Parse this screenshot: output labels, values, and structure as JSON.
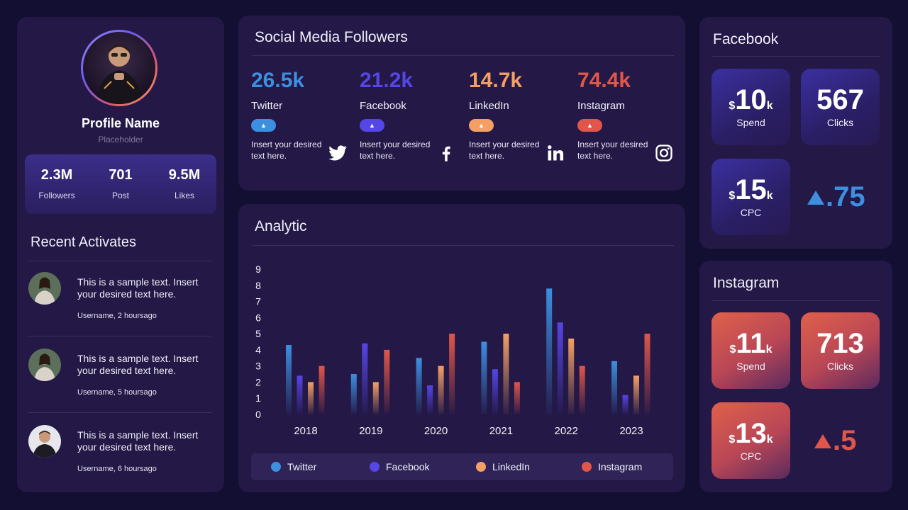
{
  "profile": {
    "name": "Profile Name",
    "subtitle": "Placeholder",
    "stats": [
      {
        "value": "2.3M",
        "label": "Followers"
      },
      {
        "value": "701",
        "label": "Post"
      },
      {
        "value": "9.5M",
        "label": "Likes"
      }
    ]
  },
  "recent": {
    "title": "Recent Activates",
    "items": [
      {
        "text": "This is a sample text. Insert your desired text here.",
        "user": "Username,  2 hoursago"
      },
      {
        "text": "This is a sample text. Insert your desired text here.",
        "user": "Username,  5 hoursago"
      },
      {
        "text": "This is a sample text. Insert your desired text here.",
        "user": "Username,  6 hoursago"
      }
    ]
  },
  "social": {
    "title": "Social Media Followers",
    "networks": [
      {
        "count": "26.5k",
        "name": "Twitter",
        "desc": "Insert your desired text here.",
        "color": "#3d8fe0",
        "icon": "twitter-icon"
      },
      {
        "count": "21.2k",
        "name": "Facebook",
        "desc": "Insert your desired text here.",
        "color": "#5546e6",
        "icon": "facebook-icon"
      },
      {
        "count": "14.7k",
        "name": "LinkedIn",
        "desc": "Insert your desired text here.",
        "color": "#f4a064",
        "icon": "linkedin-icon"
      },
      {
        "count": "74.4k",
        "name": "Instagram",
        "desc": "Insert your desired text here.",
        "color": "#e0564a",
        "icon": "instagram-icon"
      }
    ]
  },
  "analytic": {
    "title": "Analytic"
  },
  "chart_data": {
    "type": "bar",
    "categories": [
      "2018",
      "2019",
      "2020",
      "2021",
      "2022",
      "2023"
    ],
    "yticks": [
      "0",
      "1",
      "2",
      "3",
      "4",
      "5",
      "6",
      "7",
      "8",
      "9"
    ],
    "ylim": [
      0,
      9
    ],
    "grid": false,
    "legend_position": "bottom",
    "series": [
      {
        "name": "Twitter",
        "color": "#3d8fe0",
        "values": [
          4.3,
          2.5,
          3.5,
          4.5,
          7.8,
          3.3
        ]
      },
      {
        "name": "Facebook",
        "color": "#5546e6",
        "values": [
          2.4,
          4.4,
          1.8,
          2.8,
          5.7,
          1.2
        ]
      },
      {
        "name": "LinkedIn",
        "color": "#f4a064",
        "values": [
          2.0,
          2.0,
          3.0,
          5.0,
          4.7,
          2.4
        ]
      },
      {
        "name": "Instagram",
        "color": "#e0564a",
        "values": [
          3.0,
          4.0,
          5.0,
          2.0,
          3.0,
          5.0
        ]
      }
    ]
  },
  "facebook": {
    "title": "Facebook",
    "spend": {
      "currency": "$",
      "value": "10",
      "suffix": "k",
      "label": "Spend"
    },
    "clicks": {
      "value": "567",
      "label": "Clicks"
    },
    "cpc": {
      "currency": "$",
      "value": "15",
      "suffix": "k",
      "label": "CPC"
    },
    "change": ".75",
    "color": "#3d8fe0"
  },
  "instagram": {
    "title": "Instagram",
    "spend": {
      "currency": "$",
      "value": "11",
      "suffix": "k",
      "label": "Spend"
    },
    "clicks": {
      "value": "713",
      "label": "Clicks"
    },
    "cpc": {
      "currency": "$",
      "value": "13",
      "suffix": "k",
      "label": "CPC"
    },
    "change": ".5",
    "color": "#e0564a"
  }
}
